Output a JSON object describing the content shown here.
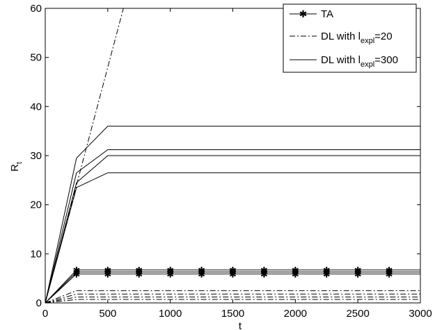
{
  "chart_data": {
    "type": "line",
    "xlabel": "t",
    "ylabel": "R",
    "ylabel_sub": "t",
    "xlim": [
      0,
      3000
    ],
    "ylim": [
      0,
      60
    ],
    "xticks": [
      "0",
      "500",
      "1000",
      "1500",
      "2000",
      "2500",
      "3000"
    ],
    "yticks": [
      "0",
      "10",
      "20",
      "30",
      "40",
      "50",
      "60"
    ],
    "grid": false,
    "legend_position": "top-right",
    "legend": {
      "entries": [
        {
          "style": "solid-star",
          "text": "TA"
        },
        {
          "style": "dashdot",
          "text_pre": "DL with l",
          "text_sub": "expl",
          "text_post": "=20"
        },
        {
          "style": "solid",
          "text_pre": "DL with l",
          "text_sub": "expl",
          "text_post": "=300"
        }
      ]
    },
    "series": [
      {
        "group": "TA",
        "style": "solid-star",
        "x": [
          0,
          250,
          3000
        ],
        "y": [
          0,
          6.7,
          6.7
        ]
      },
      {
        "group": "TA",
        "style": "solid-star",
        "x": [
          0,
          250,
          3000
        ],
        "y": [
          0,
          6.3,
          6.3
        ]
      },
      {
        "group": "TA",
        "style": "solid-star",
        "x": [
          0,
          250,
          3000
        ],
        "y": [
          0,
          5.9,
          5.9
        ]
      },
      {
        "group": "DL with lexpl=20",
        "style": "dashdot",
        "x": [
          0,
          625
        ],
        "y": [
          0,
          60
        ]
      },
      {
        "group": "DL with lexpl=20",
        "style": "dashdot",
        "x": [
          0,
          250,
          3000
        ],
        "y": [
          0,
          2.5,
          2.5
        ]
      },
      {
        "group": "DL with lexpl=20",
        "style": "dashdot",
        "x": [
          0,
          250,
          3000
        ],
        "y": [
          0,
          1.8,
          1.8
        ]
      },
      {
        "group": "DL with lexpl=20",
        "style": "dashdot",
        "x": [
          0,
          250,
          3000
        ],
        "y": [
          0,
          1.2,
          1.2
        ]
      },
      {
        "group": "DL with lexpl=20",
        "style": "dashdot",
        "x": [
          0,
          250,
          3000
        ],
        "y": [
          0,
          0.7,
          0.7
        ]
      },
      {
        "group": "DL with lexpl=300",
        "style": "solid",
        "x": [
          0,
          250,
          500,
          3000
        ],
        "y": [
          0,
          29.5,
          36,
          36
        ]
      },
      {
        "group": "DL with lexpl=300",
        "style": "solid",
        "x": [
          0,
          250,
          500,
          3000
        ],
        "y": [
          0,
          26.5,
          31.2,
          31.2
        ]
      },
      {
        "group": "DL with lexpl=300",
        "style": "solid",
        "x": [
          0,
          250,
          500,
          3000
        ],
        "y": [
          0,
          24.5,
          30,
          30
        ]
      },
      {
        "group": "DL with lexpl=300",
        "style": "solid",
        "x": [
          0,
          250,
          500,
          3000
        ],
        "y": [
          0,
          23.5,
          26.5,
          26.5
        ]
      }
    ],
    "markers": {
      "series_group": "TA",
      "x": [
        250,
        500,
        750,
        1000,
        1250,
        1500,
        1750,
        2000,
        2250,
        2500,
        2750
      ]
    }
  }
}
